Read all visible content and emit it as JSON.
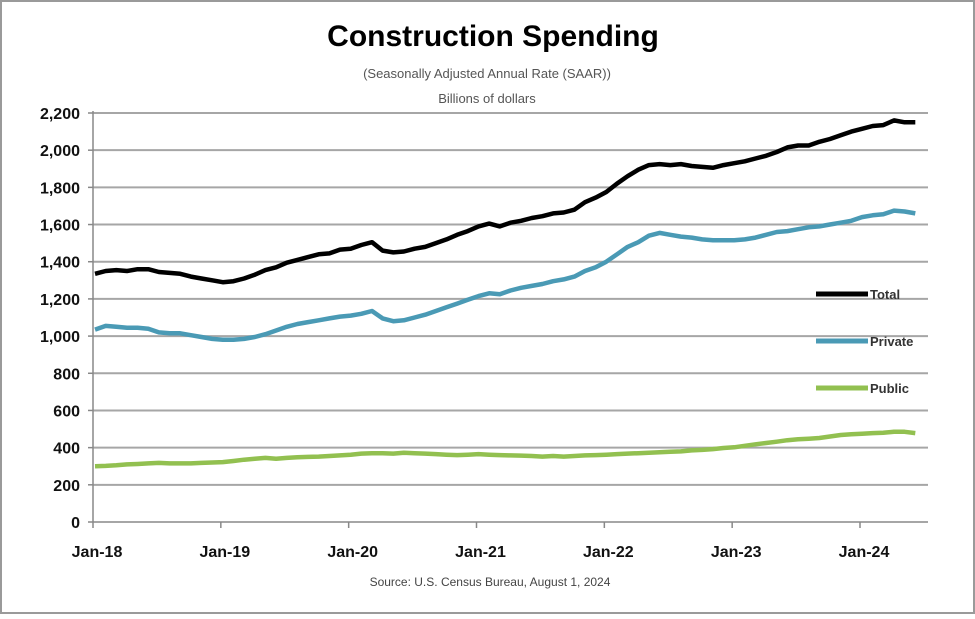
{
  "chart_data": {
    "type": "line",
    "title": "Construction Spending",
    "subtitle": "(Seasonally Adjusted Annual Rate (SAAR))",
    "units": "Billions of dollars",
    "source": "Source: U.S. Census Bureau, August 1, 2024",
    "xlabel": "",
    "ylabel": "",
    "x_frequency": "monthly",
    "x_start": "Jan-18",
    "x_end": "Jun-24",
    "x_ticks": [
      "Jan-18",
      "Jan-19",
      "Jan-20",
      "Jan-21",
      "Jan-22",
      "Jan-23",
      "Jan-24"
    ],
    "y_ticks": [
      "0",
      "200",
      "400",
      "600",
      "800",
      "1,000",
      "1,200",
      "1,400",
      "1,600",
      "1,800",
      "2,000",
      "2,200"
    ],
    "ylim": [
      0,
      2200
    ],
    "grid": true,
    "legend_placement": "right",
    "series": [
      {
        "name": "Total",
        "color": "#000000",
        "values": [
          1335,
          1350,
          1355,
          1350,
          1360,
          1360,
          1345,
          1340,
          1335,
          1320,
          1310,
          1300,
          1290,
          1295,
          1310,
          1330,
          1355,
          1370,
          1395,
          1410,
          1425,
          1440,
          1445,
          1465,
          1470,
          1490,
          1505,
          1460,
          1450,
          1455,
          1470,
          1480,
          1500,
          1520,
          1545,
          1565,
          1590,
          1605,
          1590,
          1610,
          1620,
          1635,
          1645,
          1660,
          1665,
          1680,
          1720,
          1745,
          1775,
          1820,
          1860,
          1895,
          1920,
          1925,
          1920,
          1925,
          1915,
          1910,
          1905,
          1920,
          1930,
          1940,
          1955,
          1970,
          1990,
          2015,
          2025,
          2025,
          2045,
          2060,
          2080,
          2100,
          2115,
          2130,
          2135,
          2160,
          2150,
          2150
        ]
      },
      {
        "name": "Private",
        "color": "#4a9ab5",
        "values": [
          1035,
          1055,
          1050,
          1045,
          1045,
          1040,
          1020,
          1015,
          1015,
          1005,
          995,
          985,
          980,
          980,
          985,
          995,
          1010,
          1030,
          1050,
          1065,
          1075,
          1085,
          1095,
          1105,
          1110,
          1120,
          1135,
          1095,
          1080,
          1085,
          1100,
          1115,
          1135,
          1155,
          1175,
          1195,
          1215,
          1230,
          1225,
          1245,
          1260,
          1270,
          1280,
          1295,
          1305,
          1320,
          1350,
          1370,
          1400,
          1440,
          1480,
          1505,
          1540,
          1555,
          1545,
          1535,
          1530,
          1520,
          1515,
          1515,
          1515,
          1520,
          1530,
          1545,
          1560,
          1565,
          1575,
          1585,
          1590,
          1600,
          1610,
          1620,
          1640,
          1650,
          1655,
          1675,
          1670,
          1660
        ]
      },
      {
        "name": "Public",
        "color": "#92c050",
        "values": [
          300,
          302,
          305,
          310,
          312,
          315,
          318,
          315,
          315,
          315,
          318,
          320,
          322,
          328,
          335,
          340,
          345,
          340,
          345,
          348,
          350,
          352,
          355,
          358,
          362,
          368,
          370,
          370,
          368,
          372,
          370,
          368,
          365,
          362,
          360,
          362,
          365,
          362,
          360,
          358,
          357,
          355,
          352,
          355,
          352,
          355,
          358,
          360,
          362,
          365,
          368,
          370,
          372,
          375,
          378,
          380,
          385,
          388,
          392,
          398,
          402,
          410,
          418,
          425,
          432,
          440,
          445,
          448,
          452,
          460,
          468,
          472,
          475,
          478,
          480,
          485,
          485,
          478
        ]
      }
    ]
  }
}
